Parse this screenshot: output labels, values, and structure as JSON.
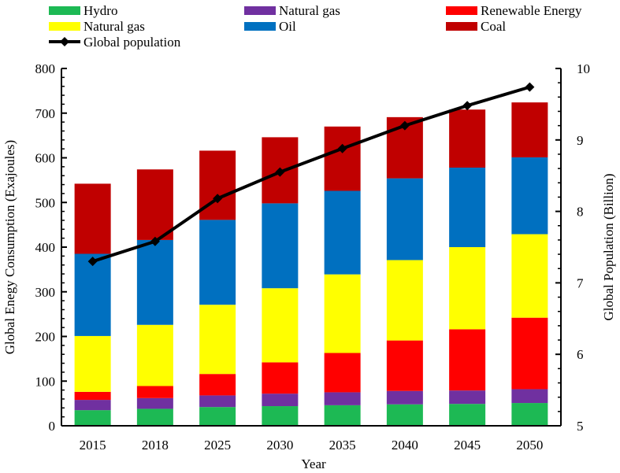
{
  "chart_data": {
    "type": "bar",
    "stacked": true,
    "categories": [
      "2015",
      "2018",
      "2025",
      "2030",
      "2035",
      "2040",
      "2045",
      "2050"
    ],
    "series": [
      {
        "name": "Hydro",
        "color": "#1db954",
        "values": [
          35,
          38,
          42,
          44,
          46,
          48,
          49,
          51
        ]
      },
      {
        "name": "Natural gas",
        "color": "#7030a0",
        "values": [
          23,
          24,
          26,
          28,
          29,
          30,
          30,
          31
        ]
      },
      {
        "name": "Renewable Energy",
        "color": "#ff0000",
        "values": [
          18,
          27,
          48,
          70,
          88,
          113,
          137,
          160
        ]
      },
      {
        "name": "Natural gas",
        "color": "#ffff00",
        "values": [
          125,
          137,
          155,
          166,
          176,
          180,
          184,
          187
        ]
      },
      {
        "name": "Oil",
        "color": "#0070c0",
        "values": [
          184,
          190,
          190,
          190,
          187,
          183,
          178,
          172
        ]
      },
      {
        "name": "Coal",
        "color": "#c00000",
        "values": [
          157,
          158,
          155,
          148,
          144,
          137,
          130,
          123
        ]
      }
    ],
    "line_series": {
      "name": "Global population",
      "color": "#000000",
      "axis": "right",
      "values": [
        7.3,
        7.58,
        8.18,
        8.55,
        8.88,
        9.2,
        9.48,
        9.74
      ]
    },
    "xlabel": "Year",
    "ylabel": "Global Enegy Consumption (Exajoules)",
    "y2label": "Global Population (Billion)",
    "ylim": [
      0,
      800
    ],
    "y2lim": [
      5,
      10
    ],
    "yticks": [
      "0",
      "100",
      "200",
      "300",
      "400",
      "500",
      "600",
      "700",
      "800"
    ],
    "y2ticks": [
      "5",
      "6",
      "7",
      "8",
      "9",
      "10"
    ],
    "legend_position": "top"
  }
}
